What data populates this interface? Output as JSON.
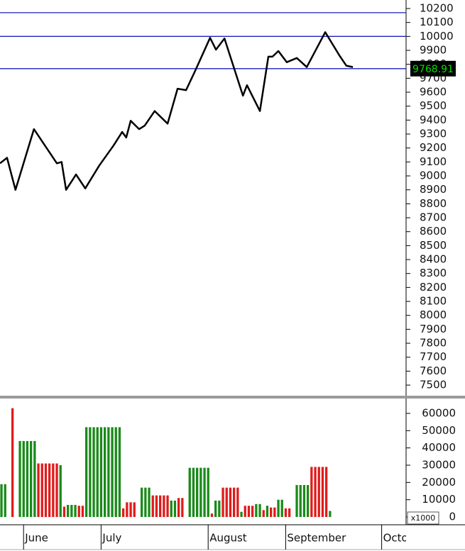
{
  "chart_data": [
    {
      "type": "line",
      "x": [
        0,
        1.9,
        4.2,
        9.2,
        15.4,
        16.7,
        17.9,
        20.6,
        23.1,
        26.9,
        30.8,
        33.1,
        34.2,
        35.4,
        37.7,
        39.2,
        41.9,
        45.4,
        48.1,
        50.4,
        52.9,
        56.9,
        58.5,
        60.8,
        65.8,
        66.9,
        70.4,
        72.7,
        73.8,
        75.4,
        77.7,
        80.4,
        83.1,
        88.1,
        91.9,
        93.8,
        95.6
      ],
      "values": [
        9090,
        9130,
        8900,
        9335,
        9090,
        9100,
        8900,
        9010,
        8910,
        9075,
        9220,
        9315,
        9275,
        9395,
        9335,
        9360,
        9465,
        9375,
        9625,
        9615,
        9755,
        9990,
        9905,
        9985,
        9575,
        9650,
        9465,
        9855,
        9855,
        9895,
        9815,
        9845,
        9780,
        10030,
        9865,
        9790,
        9780
      ],
      "color": "#000000",
      "xlim": [
        0,
        110
      ],
      "ylim": [
        7424,
        10261
      ],
      "yticks": [
        7500,
        7600,
        7700,
        7800,
        7900,
        8000,
        8100,
        8200,
        8300,
        8400,
        8500,
        8600,
        8700,
        8800,
        8900,
        9000,
        9100,
        9200,
        9300,
        9400,
        9500,
        9600,
        9700,
        9800,
        9900,
        10000,
        10100,
        10200
      ],
      "hlines": [
        10170,
        10000,
        9768.91
      ],
      "hline_color": "#1f1fbf",
      "last_value": 9768.91,
      "last_value_label": "9768.91"
    },
    {
      "type": "bar",
      "x": [
        0,
        1,
        3,
        5,
        6,
        7,
        8,
        9,
        10,
        11,
        12,
        13,
        14,
        15,
        16,
        17,
        18,
        19,
        20,
        21,
        22,
        23,
        24,
        25,
        26,
        27,
        28,
        29,
        30,
        31,
        32,
        33,
        34,
        35,
        36,
        38,
        39,
        40,
        41,
        42,
        43,
        44,
        45,
        46,
        47,
        48,
        49,
        51,
        52,
        53,
        54,
        55,
        56,
        57,
        58,
        59,
        60,
        61,
        62,
        63,
        64,
        65,
        66,
        67,
        68,
        69,
        70,
        71,
        72,
        73,
        74,
        75,
        76,
        77,
        78,
        80,
        81,
        82,
        83,
        84,
        85,
        86,
        87,
        88,
        89
      ],
      "values": [
        19000,
        19000,
        63000,
        44000,
        44000,
        44000,
        44000,
        44000,
        31000,
        31000,
        31000,
        31000,
        31000,
        31000,
        30000,
        6000,
        7000,
        7000,
        7000,
        6500,
        6500,
        52000,
        52000,
        52000,
        52000,
        52000,
        52000,
        52000,
        52000,
        52000,
        52000,
        5000,
        8500,
        8500,
        8500,
        17000,
        17000,
        17000,
        12500,
        12500,
        12500,
        12500,
        12500,
        9500,
        9500,
        11000,
        11000,
        28500,
        28500,
        28500,
        28500,
        28500,
        28500,
        2000,
        9500,
        9500,
        17000,
        17000,
        17000,
        17000,
        17000,
        3000,
        6500,
        6500,
        6500,
        7500,
        7500,
        4000,
        6500,
        5500,
        5500,
        10000,
        10000,
        5000,
        5000,
        18500,
        18500,
        18500,
        18500,
        29000,
        29000,
        29000,
        29000,
        29000,
        3500
      ],
      "colors": [
        "#1a8a1a",
        "#1a8a1a",
        "#e01b1b",
        "#1a8a1a",
        "#1a8a1a",
        "#1a8a1a",
        "#1a8a1a",
        "#1a8a1a",
        "#e01b1b",
        "#e01b1b",
        "#e01b1b",
        "#e01b1b",
        "#e01b1b",
        "#e01b1b",
        "#1a8a1a",
        "#e01b1b",
        "#1a8a1a",
        "#1a8a1a",
        "#1a8a1a",
        "#e01b1b",
        "#e01b1b",
        "#1a8a1a",
        "#1a8a1a",
        "#1a8a1a",
        "#1a8a1a",
        "#1a8a1a",
        "#1a8a1a",
        "#1a8a1a",
        "#1a8a1a",
        "#1a8a1a",
        "#1a8a1a",
        "#e01b1b",
        "#e01b1b",
        "#e01b1b",
        "#e01b1b",
        "#1a8a1a",
        "#1a8a1a",
        "#1a8a1a",
        "#e01b1b",
        "#e01b1b",
        "#e01b1b",
        "#e01b1b",
        "#e01b1b",
        "#1a8a1a",
        "#1a8a1a",
        "#e01b1b",
        "#e01b1b",
        "#1a8a1a",
        "#1a8a1a",
        "#1a8a1a",
        "#1a8a1a",
        "#1a8a1a",
        "#1a8a1a",
        "#e01b1b",
        "#1a8a1a",
        "#1a8a1a",
        "#e01b1b",
        "#e01b1b",
        "#e01b1b",
        "#e01b1b",
        "#e01b1b",
        "#1a8a1a",
        "#e01b1b",
        "#e01b1b",
        "#e01b1b",
        "#1a8a1a",
        "#1a8a1a",
        "#e01b1b",
        "#1a8a1a",
        "#e01b1b",
        "#e01b1b",
        "#1a8a1a",
        "#1a8a1a",
        "#e01b1b",
        "#e01b1b",
        "#1a8a1a",
        "#1a8a1a",
        "#1a8a1a",
        "#1a8a1a",
        "#e01b1b",
        "#e01b1b",
        "#e01b1b",
        "#e01b1b",
        "#e01b1b",
        "#1a8a1a"
      ],
      "xlim": [
        0,
        110
      ],
      "ylim": [
        -4500,
        68600
      ],
      "yticks": [
        0,
        10000,
        20000,
        30000,
        40000,
        50000,
        60000
      ],
      "xticks": [
        {
          "value": 6,
          "label": "June"
        },
        {
          "value": 27,
          "label": "July"
        },
        {
          "value": 56,
          "label": "August"
        },
        {
          "value": 77,
          "label": "September"
        },
        {
          "value": 103,
          "label": "October"
        }
      ],
      "unit_label": "x1000"
    }
  ]
}
